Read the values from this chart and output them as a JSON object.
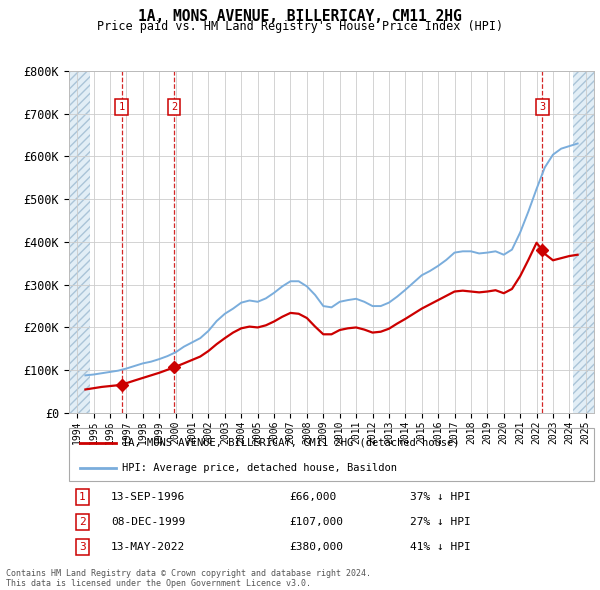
{
  "title": "1A, MONS AVENUE, BILLERICAY, CM11 2HG",
  "subtitle": "Price paid vs. HM Land Registry's House Price Index (HPI)",
  "ylim": [
    0,
    800000
  ],
  "yticks": [
    0,
    100000,
    200000,
    300000,
    400000,
    500000,
    600000,
    700000,
    800000
  ],
  "ytick_labels": [
    "£0",
    "£100K",
    "£200K",
    "£300K",
    "£400K",
    "£500K",
    "£600K",
    "£700K",
    "£800K"
  ],
  "xlim_start": 1993.5,
  "xlim_end": 2025.5,
  "hpi_color": "#7aaddc",
  "price_color": "#cc0000",
  "transactions": [
    {
      "num": 1,
      "date": "13-SEP-1996",
      "price": 66000,
      "year": 1996.7,
      "pct": "37%",
      "dir": "↓"
    },
    {
      "num": 2,
      "date": "08-DEC-1999",
      "price": 107000,
      "year": 1999.92,
      "pct": "27%",
      "dir": "↓"
    },
    {
      "num": 3,
      "date": "13-MAY-2022",
      "price": 380000,
      "year": 2022.36,
      "pct": "41%",
      "dir": "↓"
    }
  ],
  "legend_line1": "1A, MONS AVENUE, BILLERICAY, CM11 2HG (detached house)",
  "legend_line2": "HPI: Average price, detached house, Basildon",
  "footnote1": "Contains HM Land Registry data © Crown copyright and database right 2024.",
  "footnote2": "This data is licensed under the Open Government Licence v3.0.",
  "table_rows": [
    {
      "num": "1",
      "date": "13-SEP-1996",
      "price": "£66,000",
      "pct": "37% ↓ HPI"
    },
    {
      "num": "2",
      "date": "08-DEC-1999",
      "price": "£107,000",
      "pct": "27% ↓ HPI"
    },
    {
      "num": "3",
      "date": "13-MAY-2022",
      "price": "£380,000",
      "pct": "41% ↓ HPI"
    }
  ],
  "hpi_data_x": [
    1994.5,
    1995.0,
    1995.5,
    1996.0,
    1996.5,
    1997.0,
    1997.5,
    1998.0,
    1998.5,
    1999.0,
    1999.5,
    2000.0,
    2000.5,
    2001.0,
    2001.5,
    2002.0,
    2002.5,
    2003.0,
    2003.5,
    2004.0,
    2004.5,
    2005.0,
    2005.5,
    2006.0,
    2006.5,
    2007.0,
    2007.5,
    2008.0,
    2008.5,
    2009.0,
    2009.5,
    2010.0,
    2010.5,
    2011.0,
    2011.5,
    2012.0,
    2012.5,
    2013.0,
    2013.5,
    2014.0,
    2014.5,
    2015.0,
    2015.5,
    2016.0,
    2016.5,
    2017.0,
    2017.5,
    2018.0,
    2018.5,
    2019.0,
    2019.5,
    2020.0,
    2020.5,
    2021.0,
    2021.5,
    2022.0,
    2022.5,
    2023.0,
    2023.5,
    2024.0,
    2024.5
  ],
  "hpi_data_y": [
    88000,
    90000,
    93000,
    96000,
    99000,
    104000,
    110000,
    116000,
    120000,
    126000,
    133000,
    142000,
    155000,
    165000,
    175000,
    192000,
    215000,
    232000,
    244000,
    258000,
    263000,
    260000,
    268000,
    281000,
    296000,
    308000,
    308000,
    296000,
    276000,
    250000,
    247000,
    260000,
    264000,
    267000,
    260000,
    250000,
    250000,
    258000,
    272000,
    288000,
    305000,
    322000,
    332000,
    344000,
    358000,
    375000,
    378000,
    378000,
    373000,
    375000,
    378000,
    370000,
    382000,
    422000,
    471000,
    524000,
    574000,
    604000,
    618000,
    624000,
    630000
  ],
  "price_data_x": [
    1994.5,
    1995.0,
    1995.5,
    1996.0,
    1996.5,
    1996.7,
    1997.5,
    1998.0,
    1998.5,
    1999.0,
    1999.5,
    1999.92,
    2000.5,
    2001.0,
    2001.5,
    2002.0,
    2002.5,
    2003.0,
    2003.5,
    2004.0,
    2004.5,
    2005.0,
    2005.5,
    2006.0,
    2006.5,
    2007.0,
    2007.5,
    2008.0,
    2008.5,
    2009.0,
    2009.5,
    2010.0,
    2010.5,
    2011.0,
    2011.5,
    2012.0,
    2012.5,
    2013.0,
    2013.5,
    2014.0,
    2014.5,
    2015.0,
    2015.5,
    2016.0,
    2016.5,
    2017.0,
    2017.5,
    2018.0,
    2018.5,
    2019.0,
    2019.5,
    2020.0,
    2020.5,
    2021.0,
    2021.5,
    2022.0,
    2022.36,
    2022.5,
    2023.0,
    2023.5,
    2024.0,
    2024.5
  ],
  "price_data_y": [
    55000,
    58000,
    61000,
    63000,
    65000,
    66000,
    76000,
    82000,
    88000,
    94000,
    101000,
    107000,
    116000,
    124000,
    132000,
    145000,
    161000,
    175000,
    188000,
    198000,
    202000,
    200000,
    205000,
    214000,
    225000,
    234000,
    232000,
    222000,
    202000,
    184000,
    184000,
    194000,
    198000,
    200000,
    195000,
    188000,
    190000,
    197000,
    209000,
    220000,
    232000,
    244000,
    254000,
    264000,
    274000,
    284000,
    286000,
    284000,
    282000,
    284000,
    287000,
    280000,
    290000,
    320000,
    358000,
    398000,
    380000,
    372000,
    357000,
    362000,
    367000,
    370000
  ]
}
